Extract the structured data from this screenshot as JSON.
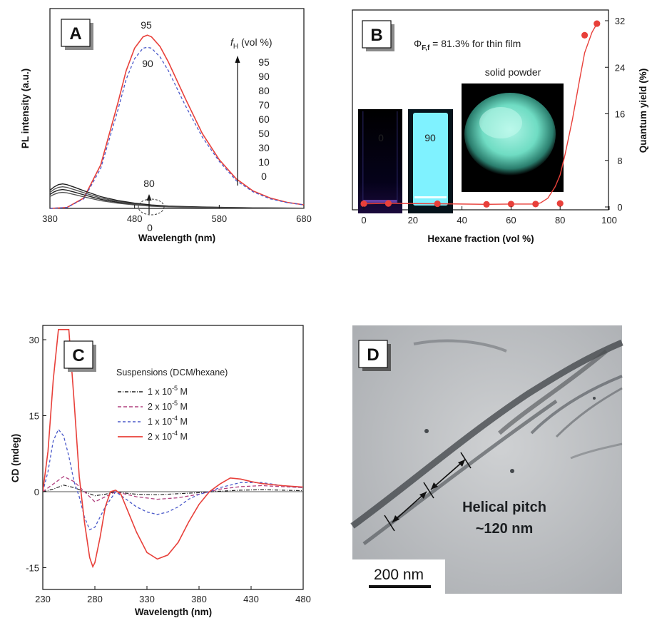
{
  "panels": {
    "A": {
      "badge": "A",
      "axis": {
        "xlabel": "Wavelength (nm)",
        "ylabel": "PL intensity (a.u.)"
      },
      "legend_title_f": "f",
      "legend_title_sub": "H",
      "legend_title_rest": " (vol %)",
      "legend_values": [
        "95",
        "90",
        "80",
        "70",
        "60",
        "50",
        "30",
        "10",
        "0"
      ],
      "labels": {
        "peak95": "95",
        "peak90": "90",
        "low80": "80",
        "low0": "0"
      }
    },
    "B": {
      "badge": "B",
      "axis": {
        "xlabel": "Hexane fraction (vol %)",
        "ylabel": "Quantum yield (%)"
      },
      "phi_symbol": "Φ",
      "phi_sub": "F,f",
      "phi_text": " = 81.3% for thin film",
      "vial0_label": "0",
      "vial90_label": "90",
      "powder_label": "solid powder"
    },
    "C": {
      "badge": "C",
      "axis": {
        "xlabel": "Wavelength (nm)",
        "ylabel": "CD (mdeg)"
      },
      "legend_title": "Suspensions (DCM/hexane)"
    },
    "D": {
      "badge": "D",
      "label_line1": "Helical pitch",
      "label_line2": "~120 nm",
      "scalebar": "200 nm"
    }
  },
  "colors": {
    "red": "#e8403a",
    "blue": "#4a59c9",
    "magenta": "#b0407e",
    "black": "#222222",
    "cyan": "#7ff2ff",
    "powder": "#7fe5cf"
  },
  "chart_data": [
    {
      "id": "A",
      "type": "line",
      "xlabel": "Wavelength (nm)",
      "ylabel": "PL intensity (a.u.)",
      "xlim": [
        380,
        680
      ],
      "xticks": [
        380,
        480,
        580,
        680
      ],
      "ylim": [
        0,
        100
      ],
      "series": [
        {
          "name": "95",
          "style": "solid-red",
          "x": [
            380,
            400,
            420,
            440,
            460,
            470,
            480,
            490,
            495,
            500,
            510,
            520,
            540,
            560,
            580,
            600,
            620,
            640,
            660,
            680
          ],
          "y": [
            0,
            0.5,
            6,
            25,
            60,
            79,
            92,
            98.5,
            99.5,
            98.5,
            93,
            84,
            63,
            43,
            28,
            17,
            10,
            6,
            3.5,
            2
          ]
        },
        {
          "name": "90",
          "style": "dash-blue",
          "x": [
            380,
            400,
            420,
            440,
            460,
            470,
            480,
            490,
            495,
            500,
            510,
            520,
            540,
            560,
            580,
            600,
            620,
            640,
            660,
            680
          ],
          "y": [
            0,
            0.5,
            5.5,
            23,
            56,
            74,
            86,
            92,
            92.5,
            92,
            87,
            79,
            59,
            41,
            27,
            16,
            9.5,
            5.5,
            3.3,
            2
          ]
        },
        {
          "name": "0-80",
          "style": "solid-black",
          "x": [
            380,
            385,
            390,
            395,
            400,
            410,
            420,
            440,
            460,
            480,
            500,
            520,
            560,
            600,
            640,
            680
          ],
          "y": [
            8,
            9.5,
            10.5,
            10.8,
            10.5,
            9.2,
            7.8,
            5.2,
            3.5,
            2.3,
            1.5,
            1,
            0.6,
            0.35,
            0.2,
            0.1
          ]
        }
      ]
    },
    {
      "id": "B",
      "type": "scatter",
      "xlabel": "Hexane fraction (vol %)",
      "ylabel": "Quantum yield (%)",
      "xlim": [
        0,
        100
      ],
      "xticks": [
        0,
        20,
        40,
        60,
        80,
        100
      ],
      "ylim": [
        0,
        32
      ],
      "yticks": [
        0,
        8,
        16,
        24,
        32
      ],
      "x": [
        0,
        10,
        30,
        50,
        60,
        70,
        80,
        90,
        95
      ],
      "y": [
        0.55,
        0.6,
        0.55,
        0.45,
        0.5,
        0.5,
        0.6,
        29.5,
        31.5
      ]
    },
    {
      "id": "C",
      "type": "line",
      "xlabel": "Wavelength (nm)",
      "ylabel": "CD (mdeg)",
      "xlim": [
        230,
        480
      ],
      "xticks": [
        230,
        280,
        330,
        380,
        430,
        480
      ],
      "ylim": [
        -17,
        32
      ],
      "yticks": [
        -15,
        0,
        15,
        30
      ],
      "series": [
        {
          "name": "1 x 10-5 M",
          "label_main": "1 x 10",
          "label_exp": "-5",
          "label_unit": " M",
          "style": "dashdot-black",
          "x": [
            230,
            240,
            250,
            260,
            270,
            280,
            290,
            300,
            310,
            320,
            340,
            360,
            380,
            400,
            420,
            440,
            460,
            480
          ],
          "y": [
            0,
            0.5,
            1.3,
            0.8,
            0,
            -0.8,
            -0.5,
            0,
            -0.3,
            -0.5,
            -0.6,
            -0.4,
            -0.2,
            0.1,
            0.3,
            0.4,
            0.3,
            0.2
          ]
        },
        {
          "name": "2 x 10-5 M",
          "label_main": "2 x 10",
          "label_exp": "-5",
          "label_unit": " M",
          "style": "dash-magenta",
          "x": [
            230,
            240,
            250,
            260,
            270,
            280,
            290,
            300,
            310,
            320,
            340,
            360,
            380,
            400,
            420,
            440,
            460,
            480
          ],
          "y": [
            0,
            1.5,
            3,
            2,
            0,
            -2,
            -1,
            0,
            -0.5,
            -1,
            -1.5,
            -1.2,
            -0.5,
            0.5,
            1,
            1.2,
            1,
            0.8
          ]
        },
        {
          "name": "1 x 10-4 M",
          "label_main": "1 x 10",
          "label_exp": "-4",
          "label_unit": " M",
          "style": "dash-blue",
          "x": [
            230,
            235,
            240,
            245,
            250,
            255,
            260,
            265,
            270,
            275,
            280,
            290,
            300,
            310,
            320,
            330,
            340,
            350,
            360,
            370,
            380,
            390,
            400,
            420,
            440,
            460,
            480
          ],
          "y": [
            0,
            4,
            10,
            12.3,
            11,
            7,
            2,
            -1,
            -5,
            -7.5,
            -7,
            -3,
            0,
            -1.5,
            -3,
            -4,
            -4.5,
            -4,
            -3,
            -1.5,
            -0.5,
            0,
            0.8,
            1.8,
            1.8,
            1.2,
            0.8
          ]
        },
        {
          "name": "2 x 10-4 M",
          "label_main": "2 x 10",
          "label_exp": "-4",
          "label_unit": " M",
          "style": "solid-red",
          "x": [
            230,
            235,
            240,
            245,
            250,
            255,
            260,
            265,
            270,
            275,
            278,
            280,
            285,
            290,
            295,
            300,
            305,
            310,
            320,
            330,
            340,
            350,
            360,
            370,
            380,
            390,
            400,
            410,
            420,
            430,
            440,
            460,
            480
          ],
          "y": [
            0,
            8,
            22,
            32,
            32,
            32,
            18,
            3,
            -6,
            -13,
            -14.8,
            -14,
            -9,
            -3,
            0,
            0.3,
            -0.5,
            -3,
            -8,
            -12,
            -13.3,
            -12.5,
            -10,
            -6,
            -2.5,
            0,
            1.5,
            2.7,
            2.5,
            2,
            1.6,
            1.2,
            0.9
          ]
        }
      ]
    }
  ]
}
